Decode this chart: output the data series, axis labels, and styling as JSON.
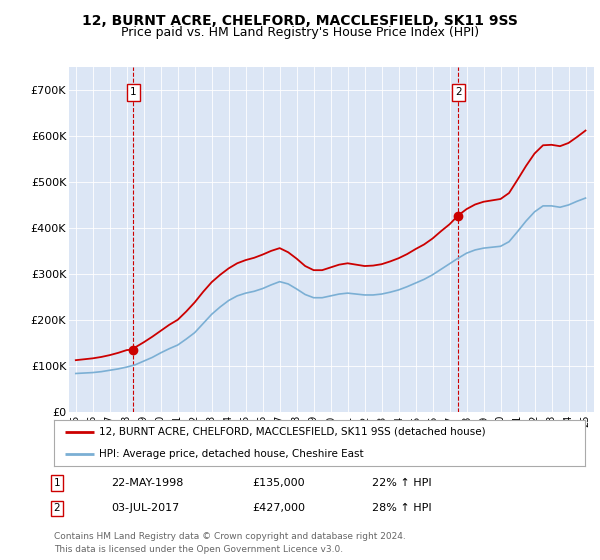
{
  "title": "12, BURNT ACRE, CHELFORD, MACCLESFIELD, SK11 9SS",
  "subtitle": "Price paid vs. HM Land Registry's House Price Index (HPI)",
  "title_fontsize": 10,
  "subtitle_fontsize": 9,
  "background_color": "#dce6f5",
  "plot_bg_color": "#dce6f5",
  "legend_label_red": "12, BURNT ACRE, CHELFORD, MACCLESFIELD, SK11 9SS (detached house)",
  "legend_label_blue": "HPI: Average price, detached house, Cheshire East",
  "annotation1_label": "1",
  "annotation1_date": "22-MAY-1998",
  "annotation1_price": "£135,000",
  "annotation1_hpi": "22% ↑ HPI",
  "annotation2_label": "2",
  "annotation2_date": "03-JUL-2017",
  "annotation2_price": "£427,000",
  "annotation2_hpi": "28% ↑ HPI",
  "footer": "Contains HM Land Registry data © Crown copyright and database right 2024.\nThis data is licensed under the Open Government Licence v3.0.",
  "ylim": [
    0,
    750000
  ],
  "yticks": [
    0,
    100000,
    200000,
    300000,
    400000,
    500000,
    600000,
    700000
  ],
  "ytick_labels": [
    "£0",
    "£100K",
    "£200K",
    "£300K",
    "£400K",
    "£500K",
    "£600K",
    "£700K"
  ],
  "red_color": "#cc0000",
  "blue_color": "#7bafd4",
  "sale1_year": 1998.38,
  "sale1_value": 135000,
  "sale2_year": 2017.5,
  "sale2_value": 427000,
  "vline_color": "#cc0000",
  "annot_box_edgecolor": "#cc0000",
  "hpi_years": [
    1995,
    1995.5,
    1996,
    1996.5,
    1997,
    1997.5,
    1998,
    1998.5,
    1999,
    1999.5,
    2000,
    2000.5,
    2001,
    2001.5,
    2002,
    2002.5,
    2003,
    2003.5,
    2004,
    2004.5,
    2005,
    2005.5,
    2006,
    2006.5,
    2007,
    2007.5,
    2008,
    2008.5,
    2009,
    2009.5,
    2010,
    2010.5,
    2011,
    2011.5,
    2012,
    2012.5,
    2013,
    2013.5,
    2014,
    2014.5,
    2015,
    2015.5,
    2016,
    2016.5,
    2017,
    2017.5,
    2018,
    2018.5,
    2019,
    2019.5,
    2020,
    2020.5,
    2021,
    2021.5,
    2022,
    2022.5,
    2023,
    2023.5,
    2024,
    2024.5,
    2025
  ],
  "hpi_values": [
    83000,
    84000,
    85000,
    87000,
    90000,
    93000,
    97000,
    102000,
    110000,
    118000,
    128000,
    137000,
    145000,
    158000,
    172000,
    192000,
    212000,
    228000,
    242000,
    252000,
    258000,
    262000,
    268000,
    276000,
    283000,
    278000,
    267000,
    255000,
    248000,
    248000,
    252000,
    256000,
    258000,
    256000,
    254000,
    254000,
    256000,
    260000,
    265000,
    272000,
    280000,
    288000,
    298000,
    310000,
    322000,
    334000,
    345000,
    352000,
    356000,
    358000,
    360000,
    370000,
    392000,
    415000,
    435000,
    448000,
    448000,
    445000,
    450000,
    458000,
    465000
  ],
  "red_years": [
    1995,
    1995.5,
    1996,
    1996.5,
    1997,
    1997.5,
    1998,
    1998.38,
    1998.5,
    1999,
    1999.5,
    2000,
    2000.5,
    2001,
    2001.5,
    2002,
    2002.5,
    2003,
    2003.5,
    2004,
    2004.5,
    2005,
    2005.5,
    2006,
    2006.5,
    2007,
    2007.5,
    2008,
    2008.5,
    2009,
    2009.5,
    2010,
    2010.5,
    2011,
    2011.5,
    2012,
    2012.5,
    2013,
    2013.5,
    2014,
    2014.5,
    2015,
    2015.5,
    2016,
    2016.5,
    2017,
    2017.5,
    2018,
    2018.5,
    2019,
    2019.5,
    2020,
    2020.5,
    2021,
    2021.5,
    2022,
    2022.5,
    2023,
    2023.5,
    2024,
    2024.5,
    2025
  ],
  "red_values": [
    112000,
    114000,
    116000,
    119000,
    123000,
    128000,
    134000,
    135000,
    140000,
    151000,
    163000,
    176000,
    189000,
    200000,
    218000,
    238000,
    261000,
    282000,
    298000,
    312000,
    323000,
    330000,
    335000,
    342000,
    350000,
    356000,
    347000,
    333000,
    317000,
    308000,
    308000,
    314000,
    320000,
    323000,
    320000,
    317000,
    318000,
    321000,
    327000,
    334000,
    343000,
    354000,
    364000,
    377000,
    393000,
    408000,
    427000,
    441000,
    451000,
    457000,
    460000,
    463000,
    476000,
    505000,
    535000,
    562000,
    580000,
    581000,
    578000,
    585000,
    598000,
    612000
  ]
}
